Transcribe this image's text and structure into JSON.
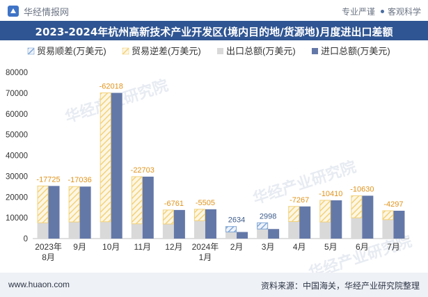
{
  "header": {
    "brand": "华经情报网",
    "tagline_left": "专业严谨",
    "tagline_right": "客观科学"
  },
  "footer": {
    "url": "www.huaon.com",
    "source": "资料来源：中国海关，华经产业研究院整理"
  },
  "watermark": "华经产业研究院",
  "colors": {
    "surplus": "#7fa6d6",
    "deficit": "#f2d27a",
    "export": "#d9d9d9",
    "import": "#6478a8",
    "title_bg": "#2f5592"
  },
  "chart_data": {
    "type": "bar",
    "title": "2023-2024年杭州高新技术产业开发区(境内目的地/货源地)月度进出口差额",
    "categories": [
      "2023年8月",
      "9月",
      "10月",
      "11月",
      "12月",
      "2024年1月",
      "2月",
      "3月",
      "4月",
      "5月",
      "6月",
      "7月"
    ],
    "ylim": [
      0,
      80000
    ],
    "yticks": [
      0,
      10000,
      20000,
      30000,
      40000,
      50000,
      60000,
      70000,
      80000
    ],
    "legend_position": "top",
    "grid": false,
    "series": [
      {
        "name": "贸易顺差(万美元)",
        "values": [
          null,
          null,
          null,
          null,
          null,
          null,
          2634,
          2998,
          null,
          null,
          null,
          null
        ]
      },
      {
        "name": "贸易逆差(万美元)",
        "values": [
          -17725,
          -17036,
          -62018,
          -22703,
          -6761,
          -5505,
          null,
          null,
          -7267,
          -10410,
          -10630,
          -4297
        ]
      },
      {
        "name": "出口总额(万美元)",
        "values": [
          7600,
          8000,
          8100,
          7100,
          7000,
          8600,
          5800,
          7600,
          8200,
          8000,
          10000,
          9100
        ]
      },
      {
        "name": "进口总额(万美元)",
        "values": [
          25325,
          25036,
          70118,
          29803,
          13761,
          14105,
          3166,
          4602,
          15467,
          18410,
          20630,
          13397
        ]
      }
    ],
    "data_labels": [
      "-17725",
      "-17036",
      "-62018",
      "-22703",
      "-6761",
      "-5505",
      "2634",
      "2998",
      "-7267",
      "-10410",
      "-10630",
      "-4297"
    ]
  }
}
